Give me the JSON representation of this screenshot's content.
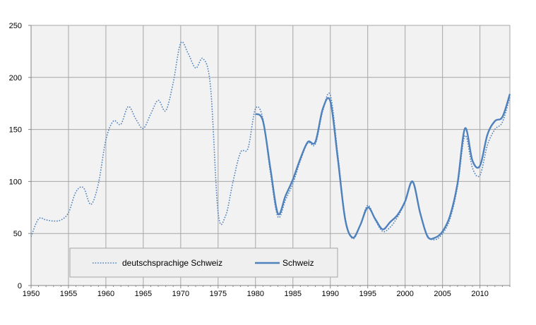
{
  "chart_data": {
    "type": "line",
    "title": "",
    "xlabel": "",
    "ylabel": "",
    "xlim": [
      1950,
      2014
    ],
    "ylim": [
      0,
      250
    ],
    "x_ticks": [
      1950,
      1955,
      1960,
      1965,
      1970,
      1975,
      1980,
      1985,
      1990,
      1995,
      2000,
      2005,
      2010
    ],
    "y_ticks": [
      0,
      50,
      100,
      150,
      200,
      250
    ],
    "grid": true,
    "legend_position": "bottom-left",
    "colors": {
      "series": "#4f81bd",
      "grid": "#a6a6a6",
      "plot_background": "#f2f2f2",
      "legend_background": "#efefef"
    },
    "series": [
      {
        "name": "deutschsprachige Schweiz",
        "style": "dotted",
        "points": [
          [
            1950,
            47
          ],
          [
            1951,
            64
          ],
          [
            1952,
            63
          ],
          [
            1953,
            62
          ],
          [
            1954,
            63
          ],
          [
            1955,
            70
          ],
          [
            1956,
            90
          ],
          [
            1957,
            94
          ],
          [
            1958,
            78
          ],
          [
            1959,
            98
          ],
          [
            1960,
            140
          ],
          [
            1961,
            158
          ],
          [
            1962,
            155
          ],
          [
            1963,
            172
          ],
          [
            1964,
            160
          ],
          [
            1965,
            151
          ],
          [
            1966,
            165
          ],
          [
            1967,
            178
          ],
          [
            1968,
            168
          ],
          [
            1969,
            195
          ],
          [
            1970,
            233
          ],
          [
            1971,
            223
          ],
          [
            1972,
            209
          ],
          [
            1973,
            218
          ],
          [
            1974,
            190
          ],
          [
            1975,
            70
          ],
          [
            1976,
            67
          ],
          [
            1977,
            100
          ],
          [
            1978,
            128
          ],
          [
            1979,
            132
          ],
          [
            1980,
            170
          ],
          [
            1981,
            160
          ],
          [
            1982,
            108
          ],
          [
            1983,
            66
          ],
          [
            1984,
            82
          ],
          [
            1985,
            98
          ],
          [
            1986,
            120
          ],
          [
            1987,
            137
          ],
          [
            1988,
            136
          ],
          [
            1989,
            168
          ],
          [
            1990,
            183
          ],
          [
            1991,
            126
          ],
          [
            1992,
            65
          ],
          [
            1993,
            45
          ],
          [
            1994,
            58
          ],
          [
            1995,
            77
          ],
          [
            1996,
            63
          ],
          [
            1997,
            52
          ],
          [
            1998,
            56
          ],
          [
            1999,
            66
          ],
          [
            2000,
            80
          ],
          [
            2001,
            99
          ],
          [
            2002,
            70
          ],
          [
            2003,
            48
          ],
          [
            2004,
            44
          ],
          [
            2005,
            50
          ],
          [
            2006,
            64
          ],
          [
            2007,
            95
          ],
          [
            2008,
            144
          ],
          [
            2009,
            113
          ],
          [
            2010,
            106
          ],
          [
            2011,
            135
          ],
          [
            2012,
            150
          ],
          [
            2013,
            157
          ],
          [
            2014,
            181
          ]
        ]
      },
      {
        "name": "Schweiz",
        "style": "solid",
        "points": [
          [
            1980,
            165
          ],
          [
            1981,
            158
          ],
          [
            1982,
            112
          ],
          [
            1983,
            69
          ],
          [
            1984,
            86
          ],
          [
            1985,
            102
          ],
          [
            1986,
            122
          ],
          [
            1987,
            138
          ],
          [
            1988,
            138
          ],
          [
            1989,
            170
          ],
          [
            1990,
            177
          ],
          [
            1991,
            122
          ],
          [
            1992,
            63
          ],
          [
            1993,
            46
          ],
          [
            1994,
            58
          ],
          [
            1995,
            75
          ],
          [
            1996,
            64
          ],
          [
            1997,
            54
          ],
          [
            1998,
            61
          ],
          [
            1999,
            68
          ],
          [
            2000,
            81
          ],
          [
            2001,
            100
          ],
          [
            2002,
            70
          ],
          [
            2003,
            47
          ],
          [
            2004,
            46
          ],
          [
            2005,
            52
          ],
          [
            2006,
            67
          ],
          [
            2007,
            98
          ],
          [
            2008,
            151
          ],
          [
            2009,
            120
          ],
          [
            2010,
            115
          ],
          [
            2011,
            145
          ],
          [
            2012,
            158
          ],
          [
            2013,
            162
          ],
          [
            2014,
            184
          ]
        ]
      }
    ]
  }
}
